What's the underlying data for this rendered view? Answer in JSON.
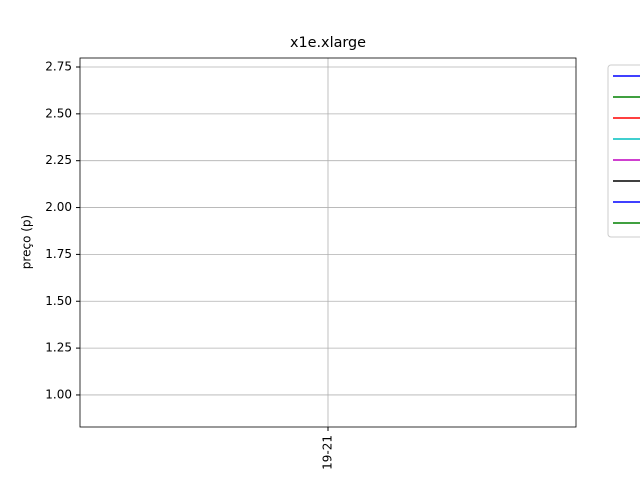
{
  "chart_data": {
    "type": "line",
    "title": "x1e.xlarge",
    "ylabel": "preço (p)",
    "categories": [
      "19-21"
    ],
    "series": [
      {
        "color": "#0000ff",
        "values": [
          null
        ]
      },
      {
        "color": "#008000",
        "values": [
          null
        ]
      },
      {
        "color": "#ff0000",
        "values": [
          null
        ]
      },
      {
        "color": "#00bfbf",
        "values": [
          null
        ]
      },
      {
        "color": "#bf00bf",
        "values": [
          null
        ]
      },
      {
        "color": "#000000",
        "values": [
          null
        ]
      },
      {
        "color": "#0000ff",
        "values": [
          null
        ]
      },
      {
        "color": "#008000",
        "values": [
          null
        ]
      }
    ],
    "ylim": [
      0.829,
      2.798
    ],
    "yticks": [
      {
        "value": 1,
        "label": "1.00"
      },
      {
        "value": 1.25,
        "label": "1.25"
      },
      {
        "value": 1.5,
        "label": "1.50"
      },
      {
        "value": 1.75,
        "label": "1.75"
      },
      {
        "value": 2,
        "label": "2.00"
      },
      {
        "value": 2.25,
        "label": "2.25"
      },
      {
        "value": 2.5,
        "label": "2.50"
      },
      {
        "value": 2.75,
        "label": "2.75"
      }
    ],
    "grid": true,
    "legend": "outside-right"
  }
}
